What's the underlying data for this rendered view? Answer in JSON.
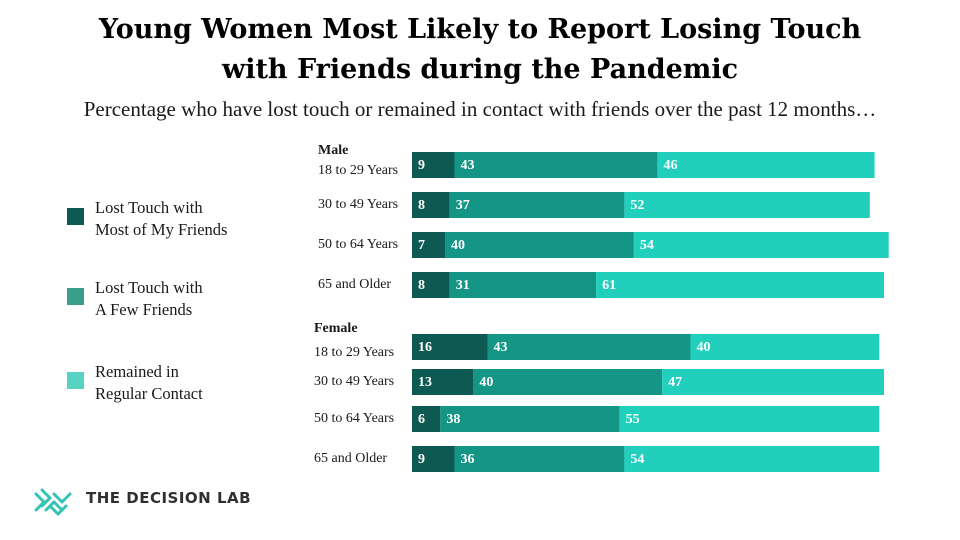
{
  "title_line1": "Young Women Most Likely to Report Losing Touch",
  "title_line2": "with Friends during the Pandemic",
  "subtitle": "Percentage who have lost touch or remained in contact with friends over the past 12 months…",
  "legend": [
    {
      "line1": "Lost Touch with",
      "line2": "Most of My Friends",
      "color": "#0e5a53"
    },
    {
      "line1": "Lost Touch with",
      "line2": "A Few Friends",
      "color": "#3b9d8c"
    },
    {
      "line1": "Remained in",
      "line2": "Regular Contact",
      "color": "#58d3c3"
    }
  ],
  "brand": "THE DECISION LAB",
  "colors": {
    "most": "#0e5a53",
    "few": "#149585",
    "regular": "#22cfbd",
    "brand_icon": "#35c4b4"
  },
  "chart_data": {
    "type": "bar",
    "orientation": "horizontal",
    "stacked": true,
    "title": "Young Women Most Likely to Report Losing Touch with Friends during the Pandemic",
    "subtitle": "Percentage who have lost touch or remained in contact with friends over the past 12 months…",
    "series_names": [
      "Lost Touch with Most of My Friends",
      "Lost Touch with A Few Friends",
      "Remained in Regular Contact"
    ],
    "groups": [
      {
        "name": "Male",
        "rows": [
          {
            "label": "18 to 29 Years",
            "values": [
              9,
              43,
              46
            ]
          },
          {
            "label": "30 to 49 Years",
            "values": [
              8,
              37,
              52
            ]
          },
          {
            "label": "50 to 64 Years",
            "values": [
              7,
              40,
              54
            ]
          },
          {
            "label": "65 and Older",
            "values": [
              8,
              31,
              61
            ]
          }
        ]
      },
      {
        "name": "Female",
        "rows": [
          {
            "label": "18 to 29 Years",
            "values": [
              16,
              43,
              40
            ]
          },
          {
            "label": "30 to 49 Years",
            "values": [
              13,
              40,
              47
            ]
          },
          {
            "label": "50 to 64 Years",
            "values": [
              6,
              38,
              55
            ]
          },
          {
            "label": "65 and Older",
            "values": [
              9,
              36,
              54
            ]
          }
        ]
      }
    ]
  }
}
